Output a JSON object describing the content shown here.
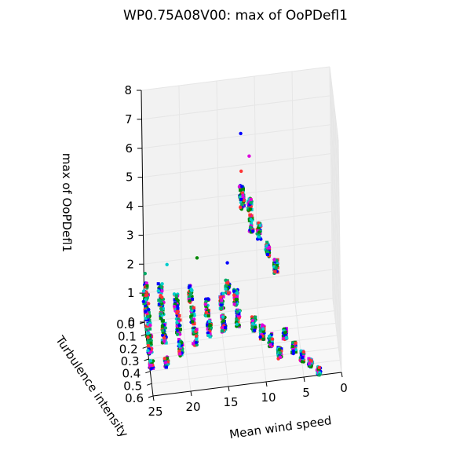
{
  "chart_data": {
    "type": "scatter",
    "projection": "3d",
    "title": "WP0.75A08V00: max of OoPDefl1",
    "xlabel": "Mean wind speed",
    "ylabel": "Turbulence intensity",
    "zlabel": "max of OoPDefl1",
    "xlim": [
      0,
      25
    ],
    "ylim": [
      0,
      0.6
    ],
    "zlim": [
      0,
      8
    ],
    "x_ticks": [
      "0",
      "5",
      "10",
      "15",
      "20",
      "25"
    ],
    "y_ticks": [
      "0.0",
      "0.1",
      "0.2",
      "0.3",
      "0.4",
      "0.5",
      "0.6"
    ],
    "z_ticks": [
      "0",
      "1",
      "2",
      "3",
      "4",
      "5",
      "6",
      "7",
      "8"
    ],
    "grid": true,
    "pane_color": "#f2f2f2",
    "series_colors": [
      "#00cccc",
      "#008800",
      "#0000ff",
      "#dd00dd",
      "#ff3333",
      "#00aa66"
    ],
    "clusters": [
      {
        "ws": 25,
        "ti": 0.5,
        "z": [
          0.5,
          0.8
        ]
      },
      {
        "ws": 25,
        "ti": 0.4,
        "z": [
          0.6,
          1.3
        ]
      },
      {
        "ws": 25,
        "ti": 0.3,
        "z": [
          0.7,
          1.7
        ]
      },
      {
        "ws": 25,
        "ti": 0.2,
        "z": [
          0.9,
          1.9
        ]
      },
      {
        "ws": 25,
        "ti": 0.1,
        "z": [
          1.0,
          1.8
        ]
      },
      {
        "ws": 23,
        "ti": 0.5,
        "z": [
          0.5,
          0.9
        ]
      },
      {
        "ws": 23,
        "ti": 0.35,
        "z": [
          0.7,
          1.4
        ]
      },
      {
        "ws": 23,
        "ti": 0.2,
        "z": [
          0.8,
          1.6
        ]
      },
      {
        "ws": 23,
        "ti": 0.1,
        "z": [
          0.9,
          1.7
        ]
      },
      {
        "ws": 21,
        "ti": 0.45,
        "z": [
          0.6,
          1.2
        ]
      },
      {
        "ws": 21,
        "ti": 0.3,
        "z": [
          0.7,
          1.4
        ]
      },
      {
        "ws": 21,
        "ti": 0.15,
        "z": [
          0.8,
          1.5
        ]
      },
      {
        "ws": 19,
        "ti": 0.4,
        "z": [
          0.7,
          1.3
        ]
      },
      {
        "ws": 19,
        "ti": 0.25,
        "z": [
          0.8,
          1.4
        ]
      },
      {
        "ws": 19,
        "ti": 0.1,
        "z": [
          0.9,
          1.5
        ]
      },
      {
        "ws": 17,
        "ti": 0.35,
        "z": [
          0.7,
          1.3
        ]
      },
      {
        "ws": 17,
        "ti": 0.2,
        "z": [
          0.8,
          1.4
        ]
      },
      {
        "ws": 15,
        "ti": 0.3,
        "z": [
          0.6,
          1.2
        ]
      },
      {
        "ws": 15,
        "ti": 0.15,
        "z": [
          0.7,
          1.3
        ]
      },
      {
        "ws": 14,
        "ti": 0.05,
        "z": [
          0.8,
          1.3
        ]
      },
      {
        "ws": 13,
        "ti": 0.25,
        "z": [
          0.5,
          1.1
        ]
      },
      {
        "ws": 13,
        "ti": 0.1,
        "z": [
          0.6,
          1.2
        ]
      },
      {
        "ws": 12,
        "ti": 0.05,
        "z": [
          4.0,
          4.5
        ]
      },
      {
        "ws": 12,
        "ti": 0.1,
        "z": [
          3.9,
          4.4
        ]
      },
      {
        "ws": 11,
        "ti": 0.1,
        "z": [
          3.8,
          4.3
        ]
      },
      {
        "ws": 11,
        "ti": 0.2,
        "z": [
          3.5,
          4.1
        ]
      },
      {
        "ws": 11,
        "ti": 0.3,
        "z": [
          0.5,
          1.0
        ]
      },
      {
        "ws": 10,
        "ti": 0.2,
        "z": [
          3.2,
          3.8
        ]
      },
      {
        "ws": 10,
        "ti": 0.35,
        "z": [
          0.4,
          0.9
        ]
      },
      {
        "ws": 9,
        "ti": 0.25,
        "z": [
          2.8,
          3.3
        ]
      },
      {
        "ws": 9,
        "ti": 0.4,
        "z": [
          0.3,
          0.8
        ]
      },
      {
        "ws": 8,
        "ti": 0.3,
        "z": [
          2.4,
          2.9
        ]
      },
      {
        "ws": 8,
        "ti": 0.5,
        "z": [
          0.3,
          0.7
        ]
      },
      {
        "ws": 7,
        "ti": 0.35,
        "z": [
          0.3,
          0.7
        ]
      },
      {
        "ws": 6,
        "ti": 0.45,
        "z": [
          0.2,
          0.6
        ]
      },
      {
        "ws": 5,
        "ti": 0.5,
        "z": [
          0.1,
          0.5
        ]
      },
      {
        "ws": 4,
        "ti": 0.55,
        "z": [
          0.1,
          0.4
        ]
      },
      {
        "ws": 3,
        "ti": 0.6,
        "z": [
          0.0,
          0.3
        ]
      }
    ],
    "outliers": [
      {
        "ws": 12,
        "ti": 0.05,
        "z": 6.3
      },
      {
        "ws": 11,
        "ti": 0.1,
        "z": 5.7
      },
      {
        "ws": 12,
        "ti": 0.05,
        "z": 5.0
      },
      {
        "ws": 25,
        "ti": 0.1,
        "z": 2.1
      },
      {
        "ws": 22,
        "ti": 0.05,
        "z": 2.1
      },
      {
        "ws": 18,
        "ti": 0.05,
        "z": 2.2
      },
      {
        "ws": 14,
        "ti": 0.05,
        "z": 1.9
      }
    ]
  }
}
